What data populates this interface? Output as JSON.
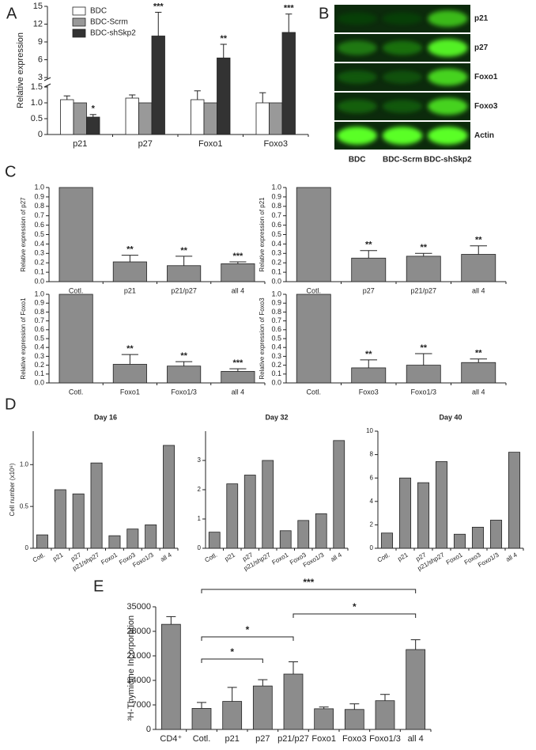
{
  "chart_data": [
    {
      "type": "bar",
      "panel": "A",
      "ylabel": "Relative expression",
      "categories": [
        "p21",
        "p27",
        "Foxo1",
        "Foxo3"
      ],
      "series": [
        {
          "name": "BDC",
          "color": "#ffffff",
          "values": [
            1.1,
            1.15,
            1.1,
            1.0
          ],
          "errors": [
            0.12,
            0.1,
            0.28,
            0.32
          ]
        },
        {
          "name": "BDC-Scrm",
          "color": "#999999",
          "values": [
            1,
            1,
            1,
            1
          ]
        },
        {
          "name": "BDC-shSkp2",
          "color": "#333333",
          "values": [
            0.55,
            10,
            6.3,
            10.6
          ],
          "errors": [
            0.08,
            4,
            2.3,
            3.1
          ],
          "annotations": [
            "*",
            "***",
            "**",
            "***"
          ]
        }
      ],
      "ylim": [
        0,
        15
      ],
      "ybreak": [
        1.5,
        3
      ],
      "yticks": [
        0,
        0.5,
        {
          "value": 1,
          "label": "1.0"
        },
        {
          "value": 1.5,
          "label": "1.5"
        },
        3,
        6,
        9,
        12,
        15
      ],
      "legend": "upper left"
    },
    {
      "type": "blot",
      "panel": "B",
      "columns": [
        "BDC",
        "BDC-Scrm",
        "BDC-shSkp2"
      ],
      "rows": [
        "p21",
        "p27",
        "Foxo1",
        "Foxo3",
        "Actin"
      ]
    },
    {
      "type": "bar",
      "panel": "C",
      "ylabel": "Relative expression of p27",
      "color": "#8c8c8c",
      "categories": [
        "Cotl.",
        "p21",
        "p21/p27",
        "all 4"
      ],
      "values": [
        1,
        0.21,
        0.17,
        0.19
      ],
      "errors": [
        null,
        0.07,
        0.1,
        0.02
      ],
      "annotations": [
        null,
        "**",
        "**",
        "***"
      ],
      "ylim": [
        0,
        1
      ],
      "yticks": [
        {
          "value": 0,
          "label": "0.0"
        },
        0.1,
        0.2,
        0.3,
        0.4,
        0.5,
        0.6,
        0.7,
        0.8,
        0.9,
        {
          "value": 1,
          "label": "1.0"
        }
      ]
    },
    {
      "type": "bar",
      "ylabel": "Relative expression of p21",
      "color": "#8c8c8c",
      "categories": [
        "Cotl.",
        "p27",
        "p21/p27",
        "all 4"
      ],
      "values": [
        1,
        0.25,
        0.27,
        0.29
      ],
      "errors": [
        null,
        0.08,
        0.03,
        0.09
      ],
      "annotations": [
        null,
        "**",
        "**",
        "**"
      ],
      "ylim": [
        0,
        1
      ],
      "yticks": [
        {
          "value": 0,
          "label": "0.0"
        },
        0.1,
        0.2,
        0.3,
        0.4,
        0.5,
        0.6,
        0.7,
        0.8,
        0.9,
        {
          "value": 1,
          "label": "1.0"
        }
      ]
    },
    {
      "type": "bar",
      "ylabel": "Relative expression of Foxo1",
      "color": "#8c8c8c",
      "categories": [
        "Cotl.",
        "Foxo1",
        "Foxo1/3",
        "all 4"
      ],
      "values": [
        1,
        0.21,
        0.19,
        0.13
      ],
      "errors": [
        null,
        0.11,
        0.05,
        0.03
      ],
      "annotations": [
        null,
        "**",
        "**",
        "***"
      ],
      "ylim": [
        0,
        1
      ],
      "yticks": [
        {
          "value": 0,
          "label": "0.0"
        },
        0.1,
        0.2,
        0.3,
        0.4,
        0.5,
        0.6,
        0.7,
        0.8,
        0.9,
        {
          "value": 1,
          "label": "1.0"
        }
      ]
    },
    {
      "type": "bar",
      "ylabel": "Relative expression of Foxo3",
      "color": "#8c8c8c",
      "categories": [
        "Cotl.",
        "Foxo3",
        "Foxo1/3",
        "all 4"
      ],
      "values": [
        1,
        0.17,
        0.2,
        0.23
      ],
      "errors": [
        null,
        0.09,
        0.13,
        0.04
      ],
      "annotations": [
        null,
        "**",
        "**",
        "**"
      ],
      "ylim": [
        0,
        1
      ],
      "yticks": [
        {
          "value": 0,
          "label": "0.0"
        },
        0.1,
        0.2,
        0.3,
        0.4,
        0.5,
        0.6,
        0.7,
        0.8,
        0.9,
        {
          "value": 1,
          "label": "1.0"
        }
      ]
    },
    {
      "type": "bar",
      "panel": "D",
      "title": "Day 16",
      "ylabel": "Cell number (x10⁶)",
      "color": "#8c8c8c",
      "categories": [
        "Cotl.",
        "p21",
        "p27",
        "p21/shp27",
        "Foxo1",
        "Foxo3",
        "Foxo1/3",
        "all 4"
      ],
      "values": [
        0.16,
        0.7,
        0.65,
        1.02,
        0.15,
        0.23,
        0.28,
        1.23
      ],
      "ylim": [
        0,
        1.4
      ],
      "yticks": [
        0,
        0.5,
        {
          "value": 1,
          "label": "1.0"
        }
      ]
    },
    {
      "type": "bar",
      "title": "Day 32",
      "color": "#8c8c8c",
      "categories": [
        "Cotl.",
        "p21",
        "p27",
        "p21/shp27",
        "Foxo1",
        "Foxo3",
        "Foxo1/3",
        "all 4"
      ],
      "values": [
        0.55,
        2.2,
        2.5,
        3.0,
        0.6,
        0.95,
        1.18,
        3.68
      ],
      "ylim": [
        0,
        4
      ],
      "yticks": [
        0,
        1,
        2,
        3
      ]
    },
    {
      "type": "bar",
      "title": "Day 40",
      "color": "#8c8c8c",
      "categories": [
        "Cotl.",
        "p21",
        "p27",
        "p21/shp27",
        "Foxo1",
        "Foxo3",
        "Foxo1/3",
        "all 4"
      ],
      "values": [
        1.3,
        6.0,
        5.6,
        7.4,
        1.2,
        1.8,
        2.4,
        8.2
      ],
      "ylim": [
        0,
        10
      ],
      "yticks": [
        0,
        2,
        4,
        6,
        8,
        10
      ]
    },
    {
      "type": "bar",
      "panel": "E",
      "ylabel": "³H-Thymidine Incorporation",
      "color": "#8c8c8c",
      "categories": [
        "CD4⁺",
        "Cotl.",
        "p21",
        "p27",
        "p21/p27",
        "Foxo1",
        "Foxo3",
        "Foxo1/3",
        "all 4"
      ],
      "values": [
        30000,
        6000,
        8000,
        12400,
        15800,
        5900,
        5700,
        8200,
        22800
      ],
      "errors": [
        2200,
        1700,
        4000,
        1800,
        3500,
        500,
        1600,
        1800,
        2800
      ],
      "ylim": [
        0,
        35000
      ],
      "yticks": [
        0,
        7000,
        14000,
        21000,
        28000,
        35000
      ],
      "comparisons": [
        {
          "from": "Cotl.",
          "to": "p27",
          "label": "*"
        },
        {
          "from": "Cotl.",
          "to": "p21/p27",
          "label": "*"
        },
        {
          "from": "p21/p27",
          "to": "all 4",
          "label": "*"
        },
        {
          "from": "Cotl.",
          "to": "all 4",
          "label": "***"
        }
      ]
    }
  ]
}
